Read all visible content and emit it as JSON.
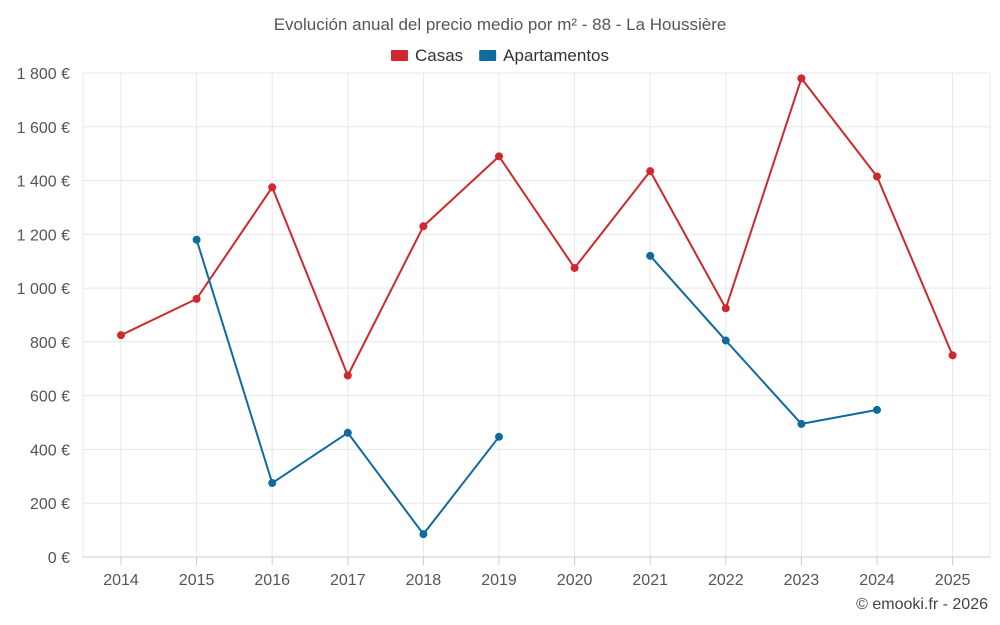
{
  "chart_data": {
    "type": "line",
    "title": "Evolución anual del precio medio por m² - 88 - La Houssière",
    "categories": [
      "2014",
      "2015",
      "2016",
      "2017",
      "2018",
      "2019",
      "2020",
      "2021",
      "2022",
      "2023",
      "2024",
      "2025"
    ],
    "series": [
      {
        "name": "Casas",
        "color": "#d0282c",
        "values": [
          825,
          960,
          1375,
          675,
          1230,
          1490,
          1075,
          1435,
          925,
          1780,
          1415,
          750
        ]
      },
      {
        "name": "Apartamentos",
        "color": "#0f6aa0",
        "values": [
          null,
          1180,
          275,
          462,
          85,
          447,
          null,
          1120,
          805,
          495,
          547,
          null
        ]
      }
    ],
    "ylim": [
      0,
      1800
    ],
    "yticks": [
      0,
      200,
      400,
      600,
      800,
      1000,
      1200,
      1400,
      1600,
      1800
    ],
    "ytick_labels": [
      "0 €",
      "200 €",
      "400 €",
      "600 €",
      "800 €",
      "1 000 €",
      "1 200 €",
      "1 400 €",
      "1 600 €",
      "1 800 €"
    ],
    "legend_position": "top-center",
    "grid": true,
    "credit": "© emooki.fr - 2026"
  }
}
